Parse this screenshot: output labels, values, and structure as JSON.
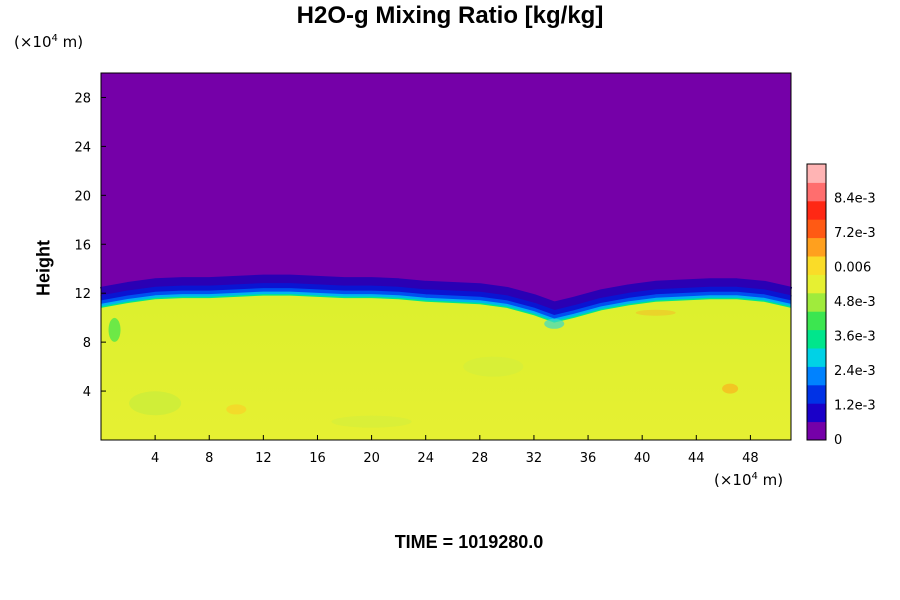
{
  "chart_data": {
    "type": "heatmap",
    "title": "H2O-g Mixing Ratio [kg/kg]",
    "ylabel": "Height",
    "x_unit": {
      "prefix": "(×10",
      "exp": "4",
      "suffix": " m)"
    },
    "y_unit": {
      "prefix": "(×10",
      "exp": "4",
      "suffix": " m)"
    },
    "xlim": [
      0,
      51
    ],
    "ylim": [
      0,
      30
    ],
    "x_ticks": [
      4,
      8,
      12,
      16,
      20,
      24,
      28,
      32,
      36,
      40,
      44,
      48
    ],
    "y_ticks": [
      4,
      8,
      12,
      16,
      20,
      24,
      28
    ],
    "moist_layer_top_profile": {
      "x": [
        0,
        2,
        4,
        6,
        8,
        10,
        12,
        14,
        16,
        18,
        20,
        22,
        24,
        26,
        28,
        30,
        32,
        33.5,
        35,
        37,
        39,
        41,
        43,
        45,
        47,
        49,
        51
      ],
      "height": [
        10.8,
        11.2,
        11.5,
        11.6,
        11.6,
        11.7,
        11.8,
        11.8,
        11.7,
        11.6,
        11.6,
        11.5,
        11.3,
        11.2,
        11.1,
        10.8,
        10.2,
        9.6,
        10.0,
        10.6,
        11.0,
        11.3,
        11.4,
        11.5,
        11.5,
        11.3,
        10.8
      ]
    },
    "values_summary": {
      "upper_dry_region_value": 0,
      "lower_moist_region_value": 0.006
    },
    "colorbar": {
      "tick_labels": [
        "8.4e-3",
        "7.2e-3",
        "0.006",
        "4.8e-3",
        "3.6e-3",
        "2.4e-3",
        "1.2e-3",
        "0"
      ],
      "tick_values": [
        0.0084,
        0.0072,
        0.006,
        0.0048,
        0.0036,
        0.0024,
        0.0012,
        0
      ],
      "range": [
        0,
        0.0096
      ],
      "colors": [
        "#7500a8",
        "#1a00c8",
        "#0032e6",
        "#0082ff",
        "#00d2e6",
        "#00e68c",
        "#3ce650",
        "#a0eb3c",
        "#e6f032",
        "#fadc28",
        "#ffa01e",
        "#ff5a14",
        "#ff2814",
        "#ff6e6e",
        "#ffb4b4"
      ]
    },
    "grid": false
  },
  "footer": {
    "time_label": "TIME = 1019280.0"
  }
}
